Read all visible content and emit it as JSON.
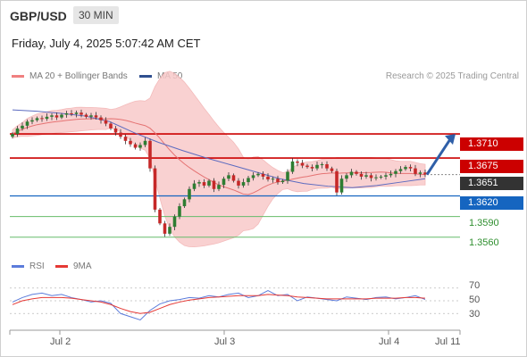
{
  "header": {
    "symbol": "GBP/USD",
    "timeframe": "30 MIN",
    "datetime": "Friday, July 4, 2025 5:07:42 AM CET"
  },
  "legend": {
    "ma20_label": "MA 20 + Bollinger Bands",
    "ma50_label": "MA 50",
    "copyright": "Research © 2025 Trading Central"
  },
  "rsi_legend": {
    "rsi_label": "RSI",
    "ma9_label": "9MA"
  },
  "colors": {
    "up_candle": "#2e7d32",
    "down_candle": "#c62828",
    "ma20": "#e57373",
    "band_fill": "#f8c9c9",
    "ma50": "#5c6bc0",
    "resistance": "#cc0000",
    "support_blue": "#1565c0",
    "support_green": "#66bb6a",
    "rsi": "#5c7cdb",
    "rsi_ma9": "#e53935",
    "arrow": "#2f5fa8",
    "current_tag": "#333333"
  },
  "chart_data": {
    "type": "candlestick",
    "symbol": "GBP/USD",
    "timeframe": "30 MIN",
    "x_labels": [
      "Jul 2",
      "Jul 3",
      "Jul 4",
      "Jul 11"
    ],
    "ylim": [
      1.3535,
      1.3775
    ],
    "levels": [
      {
        "value": 1.371,
        "label": "1.3710",
        "role": "resistance"
      },
      {
        "value": 1.3675,
        "label": "1.3675",
        "role": "resistance"
      },
      {
        "value": 1.3651,
        "label": "1.3651",
        "role": "current"
      },
      {
        "value": 1.362,
        "label": "1.3620",
        "role": "support"
      },
      {
        "value": 1.359,
        "label": "1.3590",
        "role": "support"
      },
      {
        "value": 1.356,
        "label": "1.3560",
        "role": "support"
      }
    ],
    "close_series": [
      1.371,
      1.3718,
      1.3722,
      1.3728,
      1.373,
      1.3733,
      1.3732,
      1.3735,
      1.3737,
      1.3734,
      1.3738,
      1.374,
      1.3739,
      1.3741,
      1.3738,
      1.3735,
      1.3737,
      1.3734,
      1.373,
      1.3725,
      1.3718,
      1.3712,
      1.3706,
      1.37,
      1.3695,
      1.369,
      1.3694,
      1.37,
      1.366,
      1.36,
      1.358,
      1.3565,
      1.3575,
      1.359,
      1.3605,
      1.3615,
      1.363,
      1.3638,
      1.364,
      1.3635,
      1.3642,
      1.363,
      1.3636,
      1.3645,
      1.365,
      1.3642,
      1.3635,
      1.364,
      1.3646,
      1.365,
      1.3652,
      1.3648,
      1.3644,
      1.3645,
      1.364,
      1.3642,
      1.3655,
      1.367,
      1.3668,
      1.3664,
      1.3662,
      1.366,
      1.3665,
      1.3666,
      1.366,
      1.3656,
      1.3625,
      1.3645,
      1.365,
      1.3655,
      1.3652,
      1.3648,
      1.365,
      1.3646,
      1.3647,
      1.3648,
      1.365,
      1.3652,
      1.3656,
      1.3659,
      1.3662,
      1.366,
      1.3652,
      1.3654,
      1.3651
    ],
    "ma50_values": [
      1.3745,
      1.3743,
      1.374,
      1.3736,
      1.3728,
      1.3712,
      1.3698,
      1.3686,
      1.3675,
      1.3665,
      1.3655,
      1.3645,
      1.3638,
      1.3634,
      1.3632,
      1.3635,
      1.364,
      1.3645
    ],
    "arrow": {
      "from": 1.3651,
      "to": 1.371,
      "direction": "up"
    },
    "rsi": {
      "levels": [
        70,
        50,
        30
      ],
      "level_labels": [
        "70",
        "50",
        "30"
      ],
      "ylim": [
        15,
        85
      ],
      "rsi_values": [
        48,
        55,
        60,
        62,
        58,
        60,
        55,
        52,
        48,
        50,
        46,
        30,
        25,
        20,
        35,
        45,
        50,
        52,
        55,
        54,
        58,
        56,
        60,
        62,
        55,
        58,
        66,
        58,
        60,
        50,
        56,
        54,
        52,
        50,
        56,
        54,
        52,
        55,
        56,
        53,
        55,
        58,
        52
      ],
      "ma9_values": [
        44,
        50,
        53,
        55,
        55,
        55,
        54,
        52,
        50,
        48,
        44,
        38,
        33,
        30,
        32,
        38,
        44,
        48,
        51,
        53,
        55,
        56,
        57,
        58,
        58,
        58,
        60,
        59,
        58,
        56,
        55,
        54,
        53,
        53,
        53,
        53,
        53,
        54,
        54,
        54,
        55,
        55,
        54
      ]
    }
  }
}
